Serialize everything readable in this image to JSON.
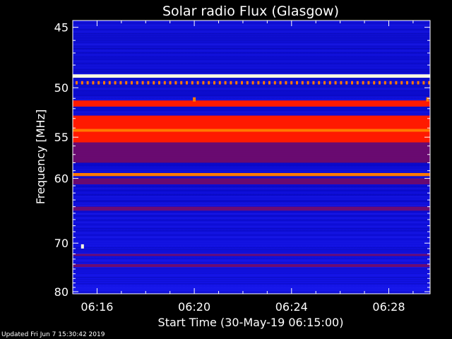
{
  "chart_data": {
    "type": "heatmap",
    "title": "Solar radio Flux (Glasgow)",
    "xlabel": "Start Time (30-May-19 06:15:00)",
    "ylabel": "Frequency [MHz]",
    "x_ticks": [
      "06:16",
      "06:20",
      "06:24",
      "06:28"
    ],
    "x_tick_minutes": [
      1,
      5,
      9,
      13
    ],
    "x_range_minutes": [
      0,
      14.7
    ],
    "y_ticks": [
      45,
      50,
      55,
      60,
      70,
      80
    ],
    "y_range_mhz": [
      44.5,
      80.5
    ],
    "y_scale": "reciprocal",
    "bands": [
      {
        "mhz_low": 48.8,
        "mhz_high": 49.1,
        "intensity": "white"
      },
      {
        "mhz_low": 49.4,
        "mhz_high": 49.7,
        "intensity": "orange-dashed"
      },
      {
        "mhz_low": 51.2,
        "mhz_high": 51.8,
        "intensity": "red"
      },
      {
        "mhz_low": 52.7,
        "mhz_high": 55.6,
        "intensity": "red"
      },
      {
        "mhz_low": 54.1,
        "mhz_high": 54.4,
        "intensity": "orange"
      },
      {
        "mhz_low": 55.6,
        "mhz_high": 58.0,
        "intensity": "dark-red"
      },
      {
        "mhz_low": 59.3,
        "mhz_high": 59.7,
        "intensity": "orange"
      },
      {
        "mhz_low": 60.0,
        "mhz_high": 60.8,
        "intensity": "dark-red"
      },
      {
        "mhz_low": 64.0,
        "mhz_high": 64.6,
        "intensity": "dark-red"
      },
      {
        "mhz_low": 72.0,
        "mhz_high": 72.4,
        "intensity": "dark-red"
      },
      {
        "mhz_low": 74.0,
        "mhz_high": 74.6,
        "intensity": "dark-red"
      }
    ],
    "bursts": [
      {
        "minute": 0.4,
        "mhz": 70.6,
        "intensity": "white"
      },
      {
        "minute": 5.0,
        "mhz": 51.1,
        "intensity": "orange"
      },
      {
        "minute": 14.6,
        "mhz": 51.1,
        "intensity": "orange"
      }
    ],
    "colors": {
      "background": "#0000c8",
      "low": "#1c1cf0",
      "dark_red": "#7a0a60",
      "red": "#ff1a00",
      "orange": "#ff7a00",
      "white": "#ffffe0"
    }
  },
  "footer": "Updated Fri Jun  7 15:30:42 2019"
}
